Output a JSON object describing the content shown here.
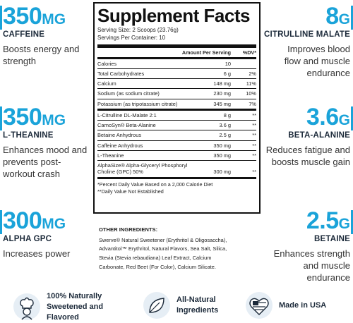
{
  "stats": [
    {
      "value": "350",
      "unit": "MG",
      "name": "CAFFEINE",
      "desc": "Boosts energy and strength"
    },
    {
      "value": "350",
      "unit": "MG",
      "name": "L-THEANINE",
      "desc": "Enhances mood and prevents post-workout crash"
    },
    {
      "value": "300",
      "unit": "MG",
      "name": "ALPHA GPC",
      "desc": "Increases power"
    },
    {
      "value": "8",
      "unit": "G",
      "name": "CITRULLINE MALATE",
      "desc": "Improves blood flow and muscle endurance"
    },
    {
      "value": "3.6",
      "unit": "G",
      "name": "BETA-ALANINE",
      "desc": "Reduces fatigue and boosts muscle gain"
    },
    {
      "value": "2.5",
      "unit": "G",
      "name": "BETAINE",
      "desc": "Enhances strength and muscle endurance"
    }
  ],
  "facts": {
    "title": "Supplement Facts",
    "serving_size": "Serving Size: 2 Scoops (23.76g)",
    "servings_per": "Servings Per Container: 10",
    "header_amount": "Amount Per Serving",
    "header_dv": "%DV*",
    "rows": [
      {
        "name": "Calories",
        "amount": "10",
        "dv": ""
      },
      {
        "name": "Total Carbohydrates",
        "amount": "6 g",
        "dv": "2%"
      },
      {
        "name": "Calcium",
        "amount": "148 mg",
        "dv": "11%"
      },
      {
        "name": "Sodium (as sodium citrate)",
        "amount": "230 mg",
        "dv": "10%"
      },
      {
        "name": "Potassium (as tripotassium citrate)",
        "amount": "345 mg",
        "dv": "7%"
      }
    ],
    "rows2": [
      {
        "name": "L-Citrulline DL-Malate 2:1",
        "amount": "8 g",
        "dv": "**"
      },
      {
        "name": "CarnoSyn® Beta-Alanine",
        "amount": "3.6 g",
        "dv": "**"
      },
      {
        "name": "Betaine Anhydrous",
        "amount": "2.5 g",
        "dv": "**"
      },
      {
        "name": "Caffeine Anhydrous",
        "amount": "350 mg",
        "dv": "**"
      },
      {
        "name": "L-Theanine",
        "amount": "350 mg",
        "dv": "**"
      }
    ],
    "alpha_line1": "AlphaSize® Alpha-Glyceryl Phosphoryl",
    "alpha_line2": "Choline (GPC) 50%",
    "alpha_amount": "300 mg",
    "alpha_dv": "**",
    "foot1": "*Percent Daily Value Based on a 2,000 Calorie Diet",
    "foot2": "**Daily Value Not Established"
  },
  "other": {
    "heading": "OTHER INGREDIENTS:",
    "lines": [
      "Swerve® Natural Sweetener (Erythritol & Oligosaccha),",
      "Advantitol™ Erythritol, Natural Flavors, Sea Salt, Silica,",
      "Stevia (Stevia rebaudiana) Leaf Extract, Calcium",
      "Carbonate, Red Beet (For Color), Calcium Silicate."
    ]
  },
  "badges": [
    {
      "icon": "chef-icon",
      "line1": "100% Naturally",
      "line2": "Sweetened and",
      "line3": "Flavored"
    },
    {
      "icon": "leaf-icon",
      "line1": "All-Natural",
      "line2": "Ingredients",
      "line3": ""
    },
    {
      "icon": "us-flag-icon",
      "line1": "Made in USA",
      "line2": "",
      "line3": ""
    }
  ],
  "colors": {
    "accent": "#1aa3d9",
    "text_dark": "#1c2a3a",
    "border": "#111111"
  }
}
